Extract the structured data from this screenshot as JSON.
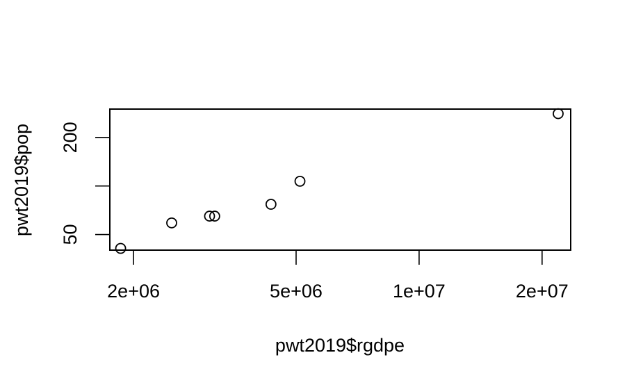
{
  "chart_data": {
    "type": "scatter",
    "title": "",
    "xlabel": "pwt2019$rgdpe",
    "ylabel": "pwt2019$pop",
    "x_scale": "log",
    "y_scale": "log",
    "x_ticks": [
      2000000,
      5000000,
      10000000,
      20000000
    ],
    "x_tick_labels": [
      "2e+06",
      "5e+06",
      "1e+07",
      "2e+07"
    ],
    "y_ticks": [
      50,
      100,
      200
    ],
    "y_tick_labels": [
      "50",
      "",
      "200"
    ],
    "xlim": [
      1750000,
      23500000
    ],
    "ylim": [
      40,
      300
    ],
    "grid": false,
    "legend": "none",
    "point_shape": "open-circle",
    "series": [
      {
        "x": [
          1860000,
          2480000,
          3070000,
          3160000,
          4340000,
          5110000,
          21900000
        ],
        "y": [
          41,
          59,
          65,
          65,
          77,
          107,
          281
        ]
      }
    ]
  }
}
